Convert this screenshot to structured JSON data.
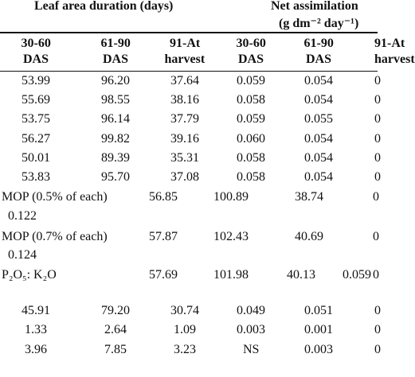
{
  "table": {
    "group_headers": [
      "Leaf area duration (days)",
      "Net assimilation",
      "(g dm⁻² day⁻¹)"
    ],
    "column_headers": [
      [
        "30-60",
        "DAS"
      ],
      [
        "61-90",
        "DAS"
      ],
      [
        "91-At",
        "harvest"
      ],
      [
        "30-60",
        "DAS"
      ],
      [
        "61-90",
        "DAS"
      ],
      [
        "91-At",
        "harvest"
      ]
    ],
    "rows": [
      [
        "53.99",
        "96.20",
        "37.64",
        "0.059",
        "0.054",
        "0"
      ],
      [
        "55.69",
        "98.55",
        "38.16",
        "0.058",
        "0.054",
        "0"
      ],
      [
        "53.75",
        "96.14",
        "37.79",
        "0.059",
        "0.055",
        "0"
      ],
      [
        "56.27",
        "99.82",
        "39.16",
        "0.060",
        "0.054",
        "0"
      ],
      [
        "50.01",
        "89.39",
        "35.31",
        "0.058",
        "0.054",
        "0"
      ],
      [
        "53.83",
        "95.70",
        "37.08",
        "0.058",
        "0.054",
        "0"
      ],
      [
        "MOP (0.5% of each)",
        "56.85",
        "100.89",
        "38.74",
        "0"
      ],
      [
        "0.122"
      ],
      [
        "MOP (0.7% of each)",
        "57.87",
        "102.43",
        "40.69",
        "0"
      ],
      [
        "0.124"
      ],
      [
        "P₂O₅: K₂O",
        "57.69",
        "101.98",
        "40.13",
        "0.059",
        "0"
      ],
      [
        "45.91",
        "79.20",
        "30.74",
        "0.049",
        "0.051",
        "0"
      ],
      [
        "1.33",
        "2.64",
        "1.09",
        "0.003",
        "0.001",
        "0"
      ],
      [
        "3.96",
        "7.85",
        "3.23",
        "NS",
        "0.003",
        "0"
      ]
    ]
  }
}
